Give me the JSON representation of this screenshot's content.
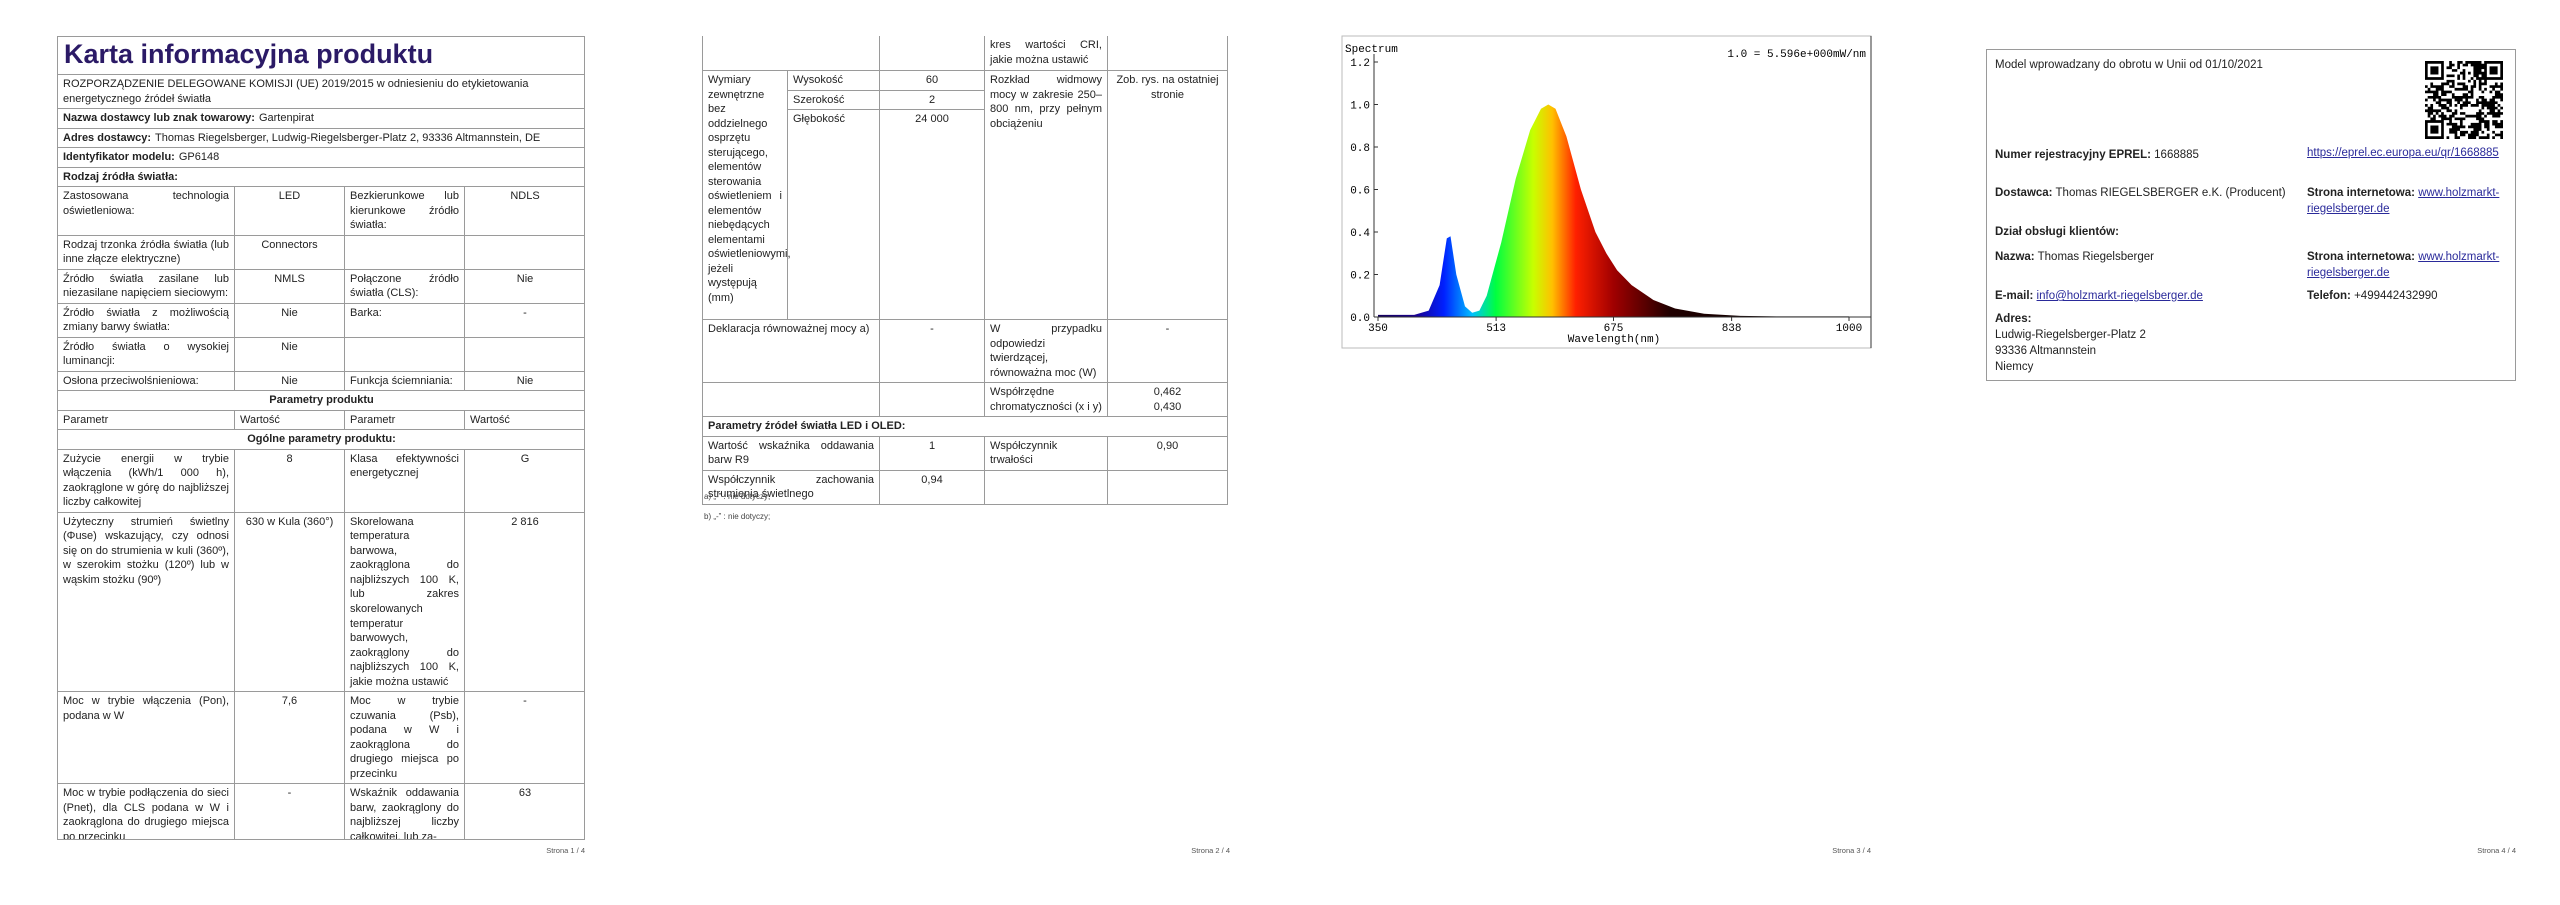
{
  "pages": [
    {
      "title": "Karta informacyjna produktu",
      "rows": [
        [
          "ROZPORZĄDZENIE DELEGOWANE KOMISJI (UE) 2019/2015 w odniesieniu do etykietowania energetycznego źródeł światła"
        ],
        [
          "Nazwa dostawcy lub znak towarowy:",
          "Gartenpirat"
        ],
        [
          "Adres dostawcy:",
          "Thomas Riegelsberger, Ludwig-Riegelsberger-Platz 2, 93336 Altmannstein, DE"
        ],
        [
          "Identyfikator modelu:",
          "GP6148"
        ],
        [
          "Rodzaj źródła światła:"
        ],
        [
          "Zastosowana technologia oświetleniowa:",
          "LED",
          "Bezkierunkowe lub kierunkowe źródło światła:",
          "NDLS"
        ],
        [
          "Rodzaj trzonka źródła światła (lub inne złącze elektryczne)",
          "Connectors",
          null,
          null
        ],
        [
          "Źródło światła zasilane lub niezasilane napięciem sieciowym:",
          "NMLS",
          "Połączone źródło światła (CLS):",
          "Nie"
        ],
        [
          "Źródło światła z możliwością zmiany barwy światła:",
          "Nie",
          "Barka:",
          "-"
        ],
        [
          "Źródło światła o wysokiej luminancji:",
          "Nie",
          null,
          null
        ],
        [
          "Osłona przeciwolśnieniowa:",
          "Nie",
          "Funkcja ściemniania:",
          "Nie"
        ],
        [
          "Parametry produktu"
        ],
        [
          "Parametr",
          "Wartość",
          "Parametr",
          "Wartość"
        ],
        [
          "Ogólne parametry produktu:"
        ],
        [
          "Zużycie energii w trybie włączenia (kWh/1 000 h), zaokrąglone w górę do najbliższej liczby całkowitej",
          "8",
          "Klasa efektywności energetycznej",
          "G"
        ],
        [
          "Użyteczny strumień świetlny (Φuse) wskazujący, czy odnosi się on do strumienia w kuli (360º), w szerokim stożku (120º) lub w wąskim stożku (90º)",
          "630 w Kula (360°)",
          "Skorelowana temperatura barwowa, zaokrąglona do najbliższych 100 K, lub zakres skorelowanych temperatur barwowych, zaokrąglony do najbliższych 100 K, jakie można ustawić",
          "2 816"
        ],
        [
          "Moc w trybie włączenia (Pon), podana w W",
          "7,6",
          "Moc w trybie czuwania (Psb), podana w W i zaokrąglona do drugiego miejsca po przecinku",
          "-"
        ],
        [
          "Moc w trybie podłączenia do sieci (Pnet), dla CLS podana w W i zaokrąglona do drugiego miejsca po przecinku",
          "-",
          "Wskaźnik oddawania barw, zaokrąglony do najbliższej liczby całkowitej, lub za-",
          "63"
        ]
      ],
      "footer": "Strona 1 / 4"
    },
    {
      "rows": [
        [
          null,
          null,
          "kres wartości CRI, jakie można ustawić",
          null
        ],
        {
          "label": "Wymiary zewnętrzne bez oddzielnego osprzętu sterującego, elementów sterowania oświetleniem i elementów niebędących elementami oświetleniowymi, jeżeli występują (mm)",
          "items": [
            [
              "Wysokość",
              "60"
            ],
            [
              "Szerokość",
              "2"
            ],
            [
              "Głębokość",
              "24 000"
            ]
          ],
          "spectrum_label": "Rozkład widmowy mocy w zakresie 250–800 nm, przy pełnym obciążeniu",
          "spectrum_value": "Zob. rys. na ostatniej stronie"
        },
        [
          "Deklaracja równoważnej mocy a)",
          "-",
          "W przypadku odpowiedzi twierdzącej, równoważna moc (W)",
          "-"
        ],
        [
          null,
          null,
          "Współrzędne chromatyczności (x i y)",
          "0,462\n0,430"
        ],
        [
          "Parametry źródeł światła LED i OLED:"
        ],
        [
          "Wartość wskaźnika oddawania barw R9",
          "1",
          "Współczynnik trwałości",
          "0,90"
        ],
        [
          "Współczynnik zachowania strumienia świetlnego",
          "0,94",
          null,
          null
        ]
      ],
      "footnotes": [
        "a) „-” : nie dotyczy;",
        "b) „-” : nie dotyczy;"
      ],
      "footer": "Strona 2 / 4"
    },
    {
      "footer": "Strona 3 / 4"
    },
    {
      "model_note": "Model wprowadzany do obrotu w Unii od 01/10/2021",
      "eprel_label": "Numer rejestracyjny EPREL:",
      "eprel_number": "1668885",
      "eprel_link": "https://eprel.ec.europa.eu/qr/1668885",
      "supplier_label": "Dostawca:",
      "supplier_name": "Thomas RIEGELSBERGER e.K. (Producent)",
      "website_label_1": "Strona internetowa:",
      "website_1": "www.holzmarkt-riegelsberger.de",
      "service_heading": "Dział obsługi klientów:",
      "name_label": "Nazwa:",
      "name_value": "Thomas Riegelsberger",
      "website_label_2": "Strona internetowa:",
      "website_2": "www.holzmarkt-riegelsberger.de",
      "email_label": "E-mail:",
      "email": "info@holzmarkt-riegelsberger.de",
      "phone_label": "Telefon:",
      "phone": "+499442432990",
      "address_label": "Adres:",
      "address_lines": [
        "Ludwig-Riegelsberger-Platz 2",
        "93336 Altmannstein",
        "Niemcy"
      ],
      "footer": "Strona 4 / 4"
    }
  ],
  "chart_data": {
    "type": "area",
    "title": "Spectrum",
    "annotation": "1.0 = 5.596e+000mW/nm",
    "x_label": "Wavelength(nm)",
    "x": [
      350,
      400,
      420,
      435,
      445,
      450,
      458,
      470,
      480,
      490,
      500,
      520,
      540,
      560,
      575,
      585,
      595,
      610,
      630,
      650,
      665,
      680,
      700,
      730,
      760,
      800,
      850,
      900,
      1000
    ],
    "values": [
      0.01,
      0.01,
      0.03,
      0.15,
      0.37,
      0.38,
      0.2,
      0.05,
      0.02,
      0.03,
      0.1,
      0.35,
      0.65,
      0.88,
      0.98,
      1.0,
      0.98,
      0.85,
      0.6,
      0.4,
      0.3,
      0.22,
      0.15,
      0.08,
      0.04,
      0.015,
      0.005,
      0.003,
      0.003
    ],
    "xlim": [
      350,
      1000
    ],
    "xticks": [
      350,
      513,
      675,
      838,
      1000
    ],
    "ylim": [
      0,
      1.2
    ],
    "yticks": [
      {
        "value": 0,
        "label": "0.0"
      },
      0.2,
      0.4,
      0.6,
      0.8,
      {
        "value": 1,
        "label": "1.0"
      },
      1.2
    ]
  }
}
